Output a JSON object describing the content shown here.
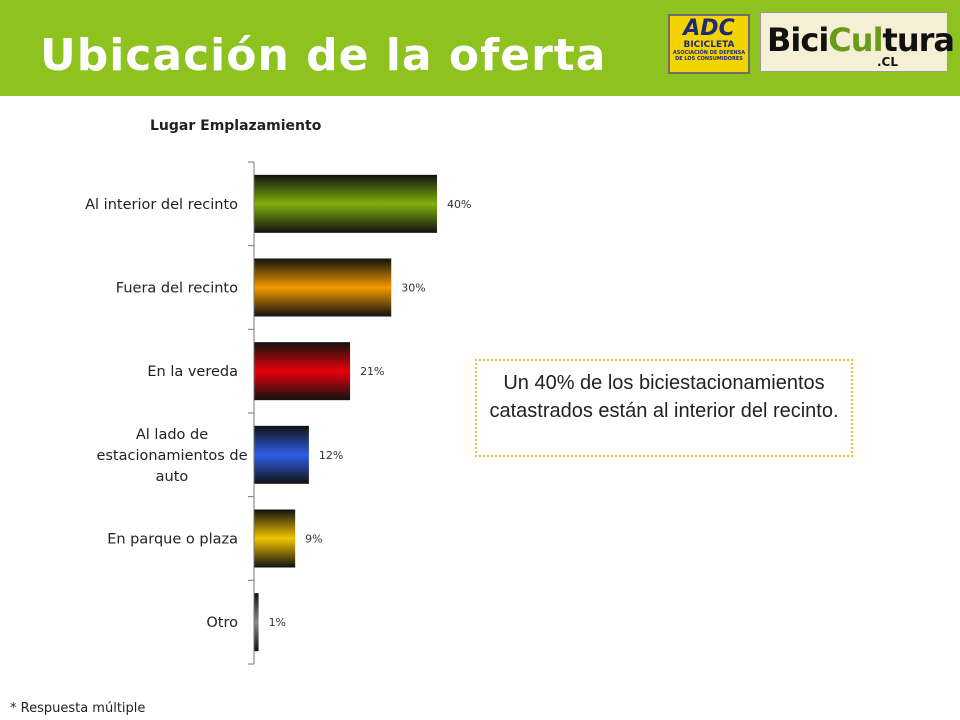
{
  "page": {
    "title": "Ubicación de la oferta",
    "footnote": "* Respuesta múltiple",
    "callout": "Un 40% de los biciestacionamientos catastrados están al interior del recinto."
  },
  "logos": {
    "adc": {
      "big": "ADC",
      "mid": "BICICLETA",
      "small_1": "ASOCIACIÓN DE DEFENSA",
      "small_2": "DE LOS CONSUMIDORES"
    },
    "bicicultura": {
      "word_1": "Bici",
      "word_2": "Cul",
      "word_3": "tura",
      "suffix": ".CL"
    }
  },
  "colors": {
    "header": "#8dc21f",
    "bars": [
      "#7fb10e",
      "#f59a00",
      "#e8000a",
      "#2f5fe8",
      "#f2c400",
      "#8a8a8a"
    ]
  },
  "chart_data": {
    "type": "bar",
    "orientation": "horizontal",
    "title": "Lugar Emplazamiento",
    "categories": [
      [
        "Al interior del recinto"
      ],
      [
        "Fuera del recinto"
      ],
      [
        "En la vereda"
      ],
      [
        "Al lado de",
        "estacionamientos de",
        "auto"
      ],
      [
        "En parque o plaza"
      ],
      [
        "Otro"
      ]
    ],
    "values": [
      40,
      30,
      21,
      12,
      9,
      1
    ],
    "value_labels": [
      "40%",
      "30%",
      "21%",
      "12%",
      "9%",
      "1%"
    ],
    "xlim": [
      0,
      100
    ],
    "grid": false,
    "legend": "none"
  }
}
